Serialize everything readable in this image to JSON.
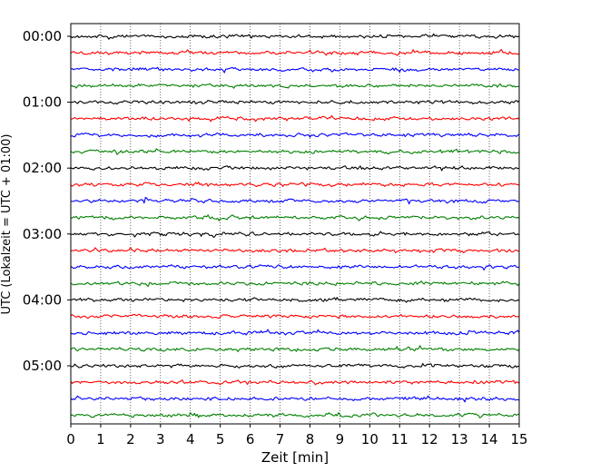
{
  "chart_data": {
    "type": "line",
    "title": "",
    "xlabel": "Zeit  [min]",
    "ylabel": "UTC (Lokalzeit = UTC + 01:00)",
    "xlim": [
      0,
      15
    ],
    "x_ticks": [
      "0",
      "1",
      "2",
      "3",
      "4",
      "5",
      "6",
      "7",
      "8",
      "9",
      "10",
      "11",
      "12",
      "13",
      "14",
      "15"
    ],
    "y_ticks": [
      "00:00",
      "01:00",
      "02:00",
      "03:00",
      "04:00",
      "05:00"
    ],
    "rows_per_hour": 4,
    "minutes_per_row": 15,
    "row_count": 24,
    "trace_colors": [
      "#000000",
      "#ff0000",
      "#0000ff",
      "#008000"
    ],
    "grid": {
      "x": "dotted vertical lines at each minute",
      "y": false
    },
    "legend": "none",
    "notable_events": [
      {
        "row_start": "02:00",
        "row_offset_min": 30,
        "minute": 2.5,
        "note": "small spike on blue trace"
      }
    ]
  }
}
